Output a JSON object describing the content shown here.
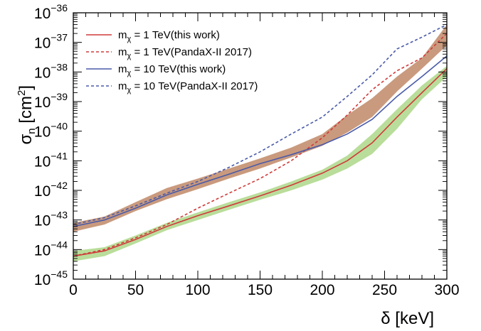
{
  "chart_data": {
    "type": "line",
    "title": "",
    "xlabel": "δ [keV]",
    "ylabel": "σn [cm2]",
    "xlim": [
      0,
      300
    ],
    "ylim": [
      1e-45,
      1e-36
    ],
    "yscale": "log",
    "grid": false,
    "legend_position": "top-left",
    "x_ticks": [
      0,
      50,
      100,
      150,
      200,
      250,
      300
    ],
    "y_tick_exponents": [
      -45,
      -44,
      -43,
      -42,
      -41,
      -40,
      -39,
      -38,
      -37,
      -36
    ],
    "bands": [
      {
        "color": "#c99a7e",
        "x": [
          0,
          25,
          50,
          75,
          100,
          125,
          150,
          175,
          200,
          220,
          240,
          260,
          280,
          300
        ],
        "lower": [
          4e-44,
          7e-44,
          2e-43,
          5e-43,
          1.1e-42,
          2.5e-42,
          5.5e-42,
          1.3e-41,
          3.2e-41,
          9e-41,
          3e-40,
          2.2e-39,
          1.3e-38,
          8e-38
        ],
        "upper": [
          8e-44,
          1.3e-43,
          4e-43,
          1.2e-42,
          2.5e-42,
          5.5e-42,
          1.2e-41,
          2.8e-41,
          8e-41,
          3.5e-40,
          1.3e-39,
          7e-39,
          3e-38,
          4e-37
        ]
      },
      {
        "color": "#b9dd9a",
        "x": [
          0,
          25,
          50,
          75,
          100,
          125,
          150,
          175,
          200,
          220,
          240,
          260,
          280,
          300
        ],
        "lower": [
          4e-45,
          6e-45,
          1.6e-44,
          4.5e-44,
          1e-43,
          2.2e-43,
          4.8e-43,
          1e-42,
          2.3e-42,
          5.5e-42,
          1.7e-41,
          1.2e-40,
          1.2e-39,
          7e-39
        ],
        "upper": [
          9e-45,
          1.2e-44,
          3e-44,
          8e-44,
          1.8e-43,
          4e-43,
          8.5e-43,
          2e-42,
          5e-42,
          1.5e-41,
          8e-41,
          5.5e-40,
          3.5e-39,
          1.6e-38
        ]
      }
    ],
    "series": [
      {
        "name": "mχ = 1 TeV(this work)",
        "label_base": "m",
        "label_sub": "χ",
        "label_rest": " = 1 TeV(this work)",
        "color": "#d03a3a",
        "dash": "solid",
        "x": [
          0,
          25,
          50,
          75,
          100,
          125,
          150,
          175,
          200,
          220,
          240,
          260,
          280,
          300
        ],
        "y": [
          6e-45,
          9e-45,
          2.2e-44,
          6e-44,
          1.4e-43,
          3e-43,
          6.5e-43,
          1.5e-42,
          3.8e-42,
          1e-41,
          4e-41,
          3e-40,
          2e-39,
          1.3e-38
        ]
      },
      {
        "name": "mχ = 1 TeV(PandaX-II 2017)",
        "label_base": "m",
        "label_sub": "χ",
        "label_rest": " = 1 TeV(PandaX-II 2017)",
        "color": "#d03a3a",
        "dash": "dashed",
        "x": [
          0,
          25,
          50,
          75,
          100,
          125,
          150,
          175,
          200,
          220,
          240,
          260,
          280,
          300
        ],
        "y": [
          6e-45,
          1e-44,
          2.5e-44,
          7e-44,
          2.5e-43,
          8e-43,
          2.5e-42,
          1e-41,
          6e-41,
          3.5e-40,
          2.5e-39,
          1.1e-38,
          3e-38,
          2e-37
        ]
      },
      {
        "name": "mχ = 10 TeV(this work)",
        "label_base": "m",
        "label_sub": "χ",
        "label_rest": " = 10 TeV(this work)",
        "color": "#4a5aa8",
        "dash": "solid",
        "x": [
          0,
          25,
          50,
          75,
          100,
          125,
          150,
          175,
          200,
          220,
          240,
          260,
          280,
          300
        ],
        "y": [
          6e-44,
          1e-43,
          2.5e-43,
          7e-43,
          1.6e-42,
          3.5e-42,
          8e-42,
          1.6e-41,
          3.5e-41,
          8e-41,
          2.5e-40,
          1.5e-39,
          7e-39,
          3.5e-38
        ]
      },
      {
        "name": "mχ = 10 TeV(PandaX-II 2017)",
        "label_base": "m",
        "label_sub": "χ",
        "label_rest": " = 10 TeV(PandaX-II 2017)",
        "color": "#4a5aa8",
        "dash": "dashed",
        "x": [
          0,
          25,
          50,
          75,
          100,
          125,
          150,
          175,
          200,
          220,
          240,
          260,
          280,
          300
        ],
        "y": [
          7e-44,
          1.2e-43,
          3e-43,
          8e-43,
          2e-42,
          6e-42,
          2e-41,
          8e-41,
          3e-40,
          1.5e-39,
          8e-39,
          6e-38,
          1.5e-37,
          4e-37
        ]
      }
    ]
  }
}
